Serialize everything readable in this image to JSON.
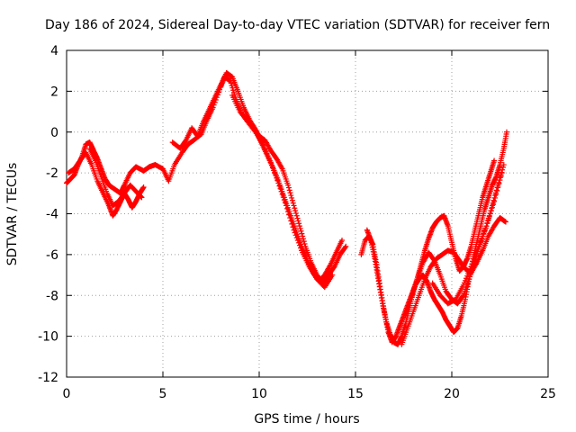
{
  "chart_data": {
    "type": "scatter",
    "title": "Day 186 of 2024, Sidereal Day-to-day VTEC variation (SDTVAR) for receiver fern",
    "xlabel": "GPS time / hours",
    "ylabel": "SDTVAR / TECUs",
    "xlim": [
      0,
      25
    ],
    "ylim": [
      -12,
      4
    ],
    "xticks": [
      0,
      5,
      10,
      15,
      20,
      25
    ],
    "yticks": [
      -12,
      -10,
      -8,
      -6,
      -4,
      -2,
      0,
      2,
      4
    ],
    "grid": true,
    "marker": "+",
    "series": [
      {
        "name": "SDTVAR",
        "color": "#ff0000",
        "tracks": [
          {
            "x": [
              0.0,
              0.2,
              0.4,
              0.6,
              0.8,
              1.0,
              1.2,
              1.4,
              1.6,
              1.8,
              2.0,
              2.2,
              2.5,
              2.8,
              3.0,
              3.3,
              3.6,
              4.0,
              4.3,
              4.6,
              5.0,
              5.3,
              5.6,
              6.0,
              6.3,
              6.6,
              7.0,
              7.3,
              7.6,
              8.0,
              8.2,
              8.5,
              8.8,
              9.1,
              9.4,
              9.7,
              10.0,
              10.3,
              10.6,
              10.9,
              11.2,
              11.5,
              11.8,
              12.1,
              12.4,
              12.7,
              13.0,
              13.3,
              13.6,
              13.9,
              14.2,
              14.5
            ],
            "y": [
              -2.5,
              -2.3,
              -2.1,
              -1.6,
              -1.2,
              -0.6,
              -0.5,
              -0.9,
              -1.3,
              -1.8,
              -2.3,
              -2.6,
              -2.8,
              -3.0,
              -2.6,
              -2.0,
              -1.7,
              -1.9,
              -1.7,
              -1.6,
              -1.8,
              -2.4,
              -1.6,
              -1.0,
              -0.6,
              -0.4,
              -0.1,
              0.6,
              1.2,
              2.2,
              2.7,
              2.5,
              1.6,
              0.9,
              0.6,
              0.3,
              -0.2,
              -0.4,
              -0.9,
              -1.3,
              -1.8,
              -2.6,
              -3.6,
              -4.6,
              -5.6,
              -6.4,
              -7.0,
              -7.4,
              -7.0,
              -6.6,
              -6.0,
              -5.6
            ]
          },
          {
            "x": [
              0.1,
              0.4,
              0.7,
              1.0,
              1.3,
              1.6,
              1.9,
              2.2,
              2.4,
              2.6,
              2.8,
              3.0,
              3.2,
              3.4,
              3.6,
              3.8,
              4.0
            ],
            "y": [
              -2.0,
              -1.8,
              -1.4,
              -1.0,
              -1.6,
              -2.4,
              -3.0,
              -3.6,
              -4.1,
              -3.8,
              -3.4,
              -3.0,
              -3.3,
              -3.7,
              -3.4,
              -3.0,
              -2.7
            ]
          },
          {
            "x": [
              1.2,
              1.5,
              1.8,
              2.1,
              2.4,
              2.7,
              3.0,
              3.3,
              3.6,
              3.9
            ],
            "y": [
              -0.8,
              -1.4,
              -2.2,
              -3.0,
              -3.6,
              -3.4,
              -3.0,
              -2.6,
              -2.9,
              -3.2
            ]
          },
          {
            "x": [
              5.5,
              5.9,
              6.2,
              6.5,
              6.8,
              7.1,
              7.4,
              7.7,
              8.0,
              8.3,
              8.6,
              8.9,
              9.2,
              9.5,
              9.8,
              10.1,
              10.4,
              10.7,
              11.0,
              11.3,
              11.6,
              11.9,
              12.2,
              12.5,
              12.8,
              13.1,
              13.4,
              13.7,
              14.0,
              14.3
            ],
            "y": [
              -0.5,
              -0.8,
              -0.4,
              0.2,
              -0.2,
              0.5,
              1.1,
              1.7,
              2.3,
              2.9,
              2.7,
              2.0,
              1.2,
              0.6,
              0.1,
              -0.5,
              -1.1,
              -1.7,
              -2.4,
              -3.2,
              -4.0,
              -4.8,
              -5.6,
              -6.3,
              -6.9,
              -7.3,
              -7.0,
              -6.5,
              -5.9,
              -5.3
            ]
          },
          {
            "x": [
              8.6,
              9.0,
              9.4,
              9.8,
              10.2,
              10.6,
              11.0,
              11.4,
              11.8,
              12.2,
              12.6,
              13.0,
              13.4,
              13.8
            ],
            "y": [
              1.8,
              1.0,
              0.5,
              0.0,
              -0.6,
              -1.5,
              -2.5,
              -3.6,
              -4.8,
              -5.8,
              -6.6,
              -7.2,
              -7.6,
              -7.0
            ]
          },
          {
            "x": [
              15.3,
              15.5,
              15.7,
              15.9,
              16.1,
              16.3,
              16.5,
              16.7,
              16.9,
              17.1,
              17.3,
              17.5,
              17.7,
              17.9,
              18.1,
              18.3,
              18.5,
              18.7,
              18.9,
              19.1,
              19.3,
              19.5,
              19.7,
              19.9,
              20.1,
              20.3,
              20.5,
              20.7,
              20.9,
              21.1,
              21.3,
              21.5,
              21.7,
              21.9,
              22.1,
              22.3,
              22.5,
              22.7,
              22.85
            ],
            "y": [
              -6.0,
              -5.3,
              -5.1,
              -5.5,
              -6.5,
              -7.7,
              -8.8,
              -9.8,
              -10.3,
              -10.0,
              -9.5,
              -9.0,
              -8.5,
              -8.0,
              -7.5,
              -7.2,
              -7.0,
              -7.3,
              -7.8,
              -8.2,
              -8.5,
              -8.8,
              -9.2,
              -9.5,
              -9.8,
              -9.6,
              -9.0,
              -8.2,
              -7.2,
              -6.2,
              -5.4,
              -4.6,
              -3.8,
              -3.2,
              -2.6,
              -2.2,
              -1.6,
              -0.8,
              0.0
            ]
          },
          {
            "x": [
              15.6,
              15.8,
              16.0,
              16.2,
              16.4,
              16.6,
              16.8,
              17.0,
              17.2,
              17.4,
              17.6,
              17.8,
              18.0,
              18.2,
              18.4,
              18.6,
              18.8,
              19.0,
              19.2,
              19.4,
              19.6,
              19.8,
              20.0,
              20.2,
              20.4,
              20.6,
              20.8,
              21.0,
              21.2,
              21.4,
              21.6,
              21.8,
              22.0,
              22.2
            ],
            "y": [
              -4.8,
              -5.3,
              -6.2,
              -7.3,
              -8.4,
              -9.3,
              -9.9,
              -10.3,
              -10.4,
              -10.0,
              -9.4,
              -8.6,
              -7.8,
              -7.2,
              -6.5,
              -5.8,
              -5.2,
              -4.7,
              -4.4,
              -4.2,
              -4.1,
              -4.6,
              -5.4,
              -6.2,
              -6.8,
              -6.6,
              -6.2,
              -5.6,
              -4.8,
              -4.0,
              -3.2,
              -2.6,
              -2.0,
              -1.4
            ]
          },
          {
            "x": [
              17.4,
              17.7,
              18.0,
              18.3,
              18.6,
              18.9,
              19.2,
              19.5,
              19.8,
              20.1,
              20.4,
              20.7,
              21.0,
              21.3,
              21.6,
              21.9,
              22.2,
              22.5,
              22.8
            ],
            "y": [
              -10.4,
              -9.6,
              -8.8,
              -8.0,
              -7.2,
              -6.6,
              -6.2,
              -6.0,
              -5.8,
              -5.9,
              -6.3,
              -6.7,
              -6.9,
              -6.4,
              -5.8,
              -5.1,
              -4.6,
              -4.2,
              -4.4
            ]
          },
          {
            "x": [
              17.6,
              17.9,
              18.2,
              18.5,
              18.8,
              19.1,
              19.4,
              19.7,
              20.0,
              20.3,
              20.6,
              20.9,
              21.2,
              21.5,
              21.8,
              22.1,
              22.4,
              22.7
            ],
            "y": [
              -9.0,
              -8.2,
              -7.2,
              -6.4,
              -5.9,
              -6.3,
              -7.0,
              -7.8,
              -8.2,
              -8.4,
              -8.0,
              -7.2,
              -6.3,
              -5.4,
              -4.6,
              -3.6,
              -2.6,
              -1.6
            ]
          },
          {
            "x": [
              19.0,
              19.4,
              19.8,
              20.2,
              20.6,
              21.0,
              21.4,
              21.8,
              22.2,
              22.6
            ],
            "y": [
              -7.4,
              -8.0,
              -8.4,
              -8.2,
              -7.5,
              -6.6,
              -5.6,
              -4.6,
              -3.4,
              -2.0
            ]
          }
        ]
      }
    ]
  }
}
